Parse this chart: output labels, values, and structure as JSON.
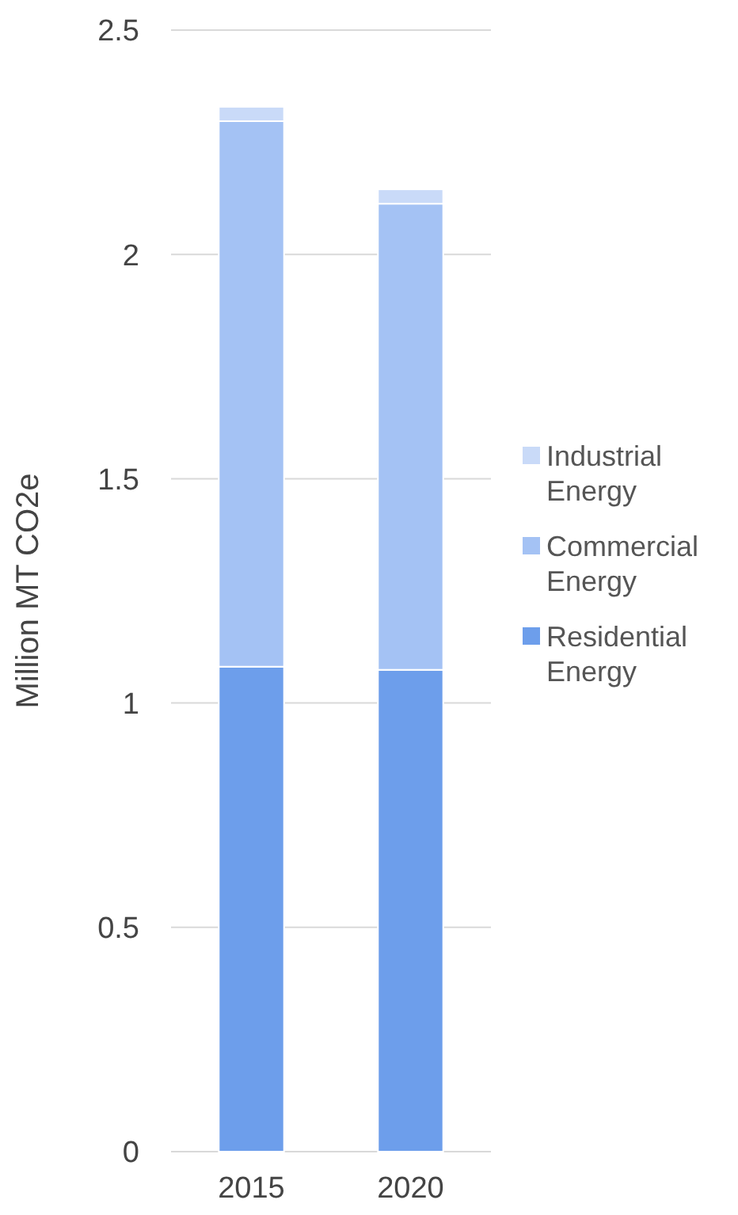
{
  "chart_data": {
    "type": "bar",
    "stacked": true,
    "ylabel": "Million MT CO2e",
    "categories": [
      "2015",
      "2020"
    ],
    "series": [
      {
        "name": "Residential Energy",
        "color": "#6d9eeb",
        "values": [
          1.081,
          1.074
        ]
      },
      {
        "name": "Commercial Energy",
        "color": "#a4c2f4",
        "values": [
          1.216,
          1.039
        ]
      },
      {
        "name": "Industrial Energy",
        "color": "#c9daf8",
        "values": [
          0.032,
          0.032
        ]
      }
    ],
    "ylim": [
      0,
      2.5
    ],
    "yticks": [
      0,
      0.5,
      1,
      1.5,
      2,
      2.5
    ],
    "grid": "y",
    "legend": "right"
  }
}
